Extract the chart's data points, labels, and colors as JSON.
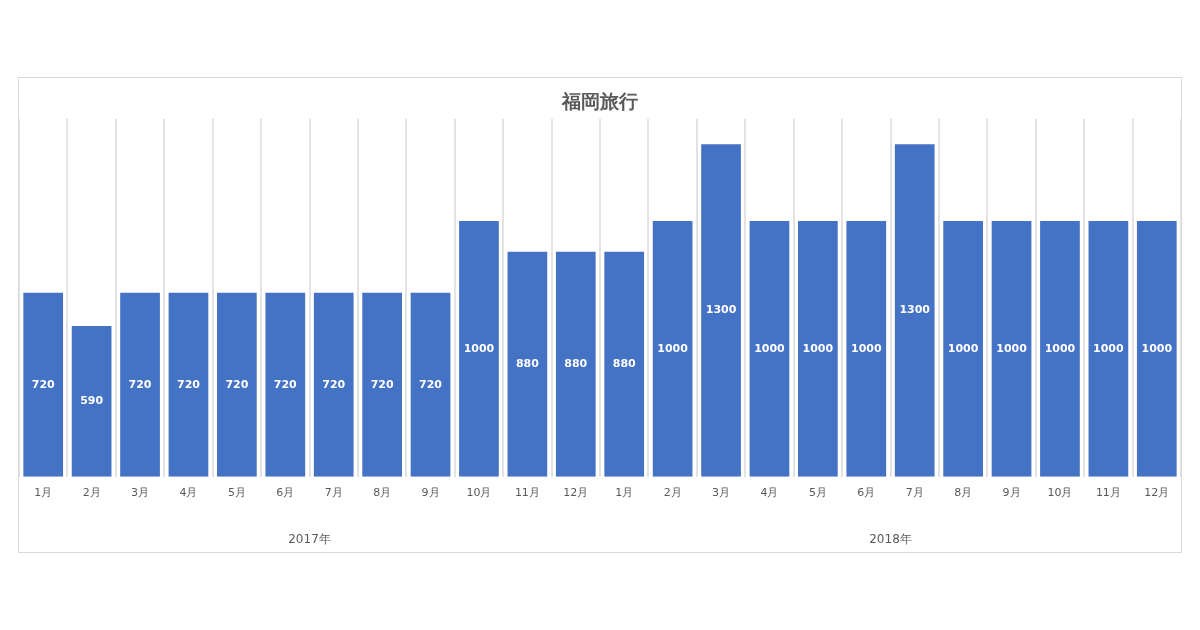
{
  "chart_data": {
    "type": "bar",
    "title": "福岡旅行",
    "categories": [
      "1月",
      "2月",
      "3月",
      "4月",
      "5月",
      "6月",
      "7月",
      "8月",
      "9月",
      "10月",
      "11月",
      "12月",
      "1月",
      "2月",
      "3月",
      "4月",
      "5月",
      "6月",
      "7月",
      "8月",
      "9月",
      "10月",
      "11月",
      "12月"
    ],
    "values": [
      720,
      590,
      720,
      720,
      720,
      720,
      720,
      720,
      720,
      1000,
      880,
      880,
      880,
      1000,
      1300,
      1000,
      1000,
      1000,
      1300,
      1000,
      1000,
      1000,
      1000,
      1000
    ],
    "color": "#4472c4",
    "data_labels": true,
    "grid": "x",
    "legend": false,
    "annotations": [
      "2017年",
      "2018年"
    ]
  }
}
